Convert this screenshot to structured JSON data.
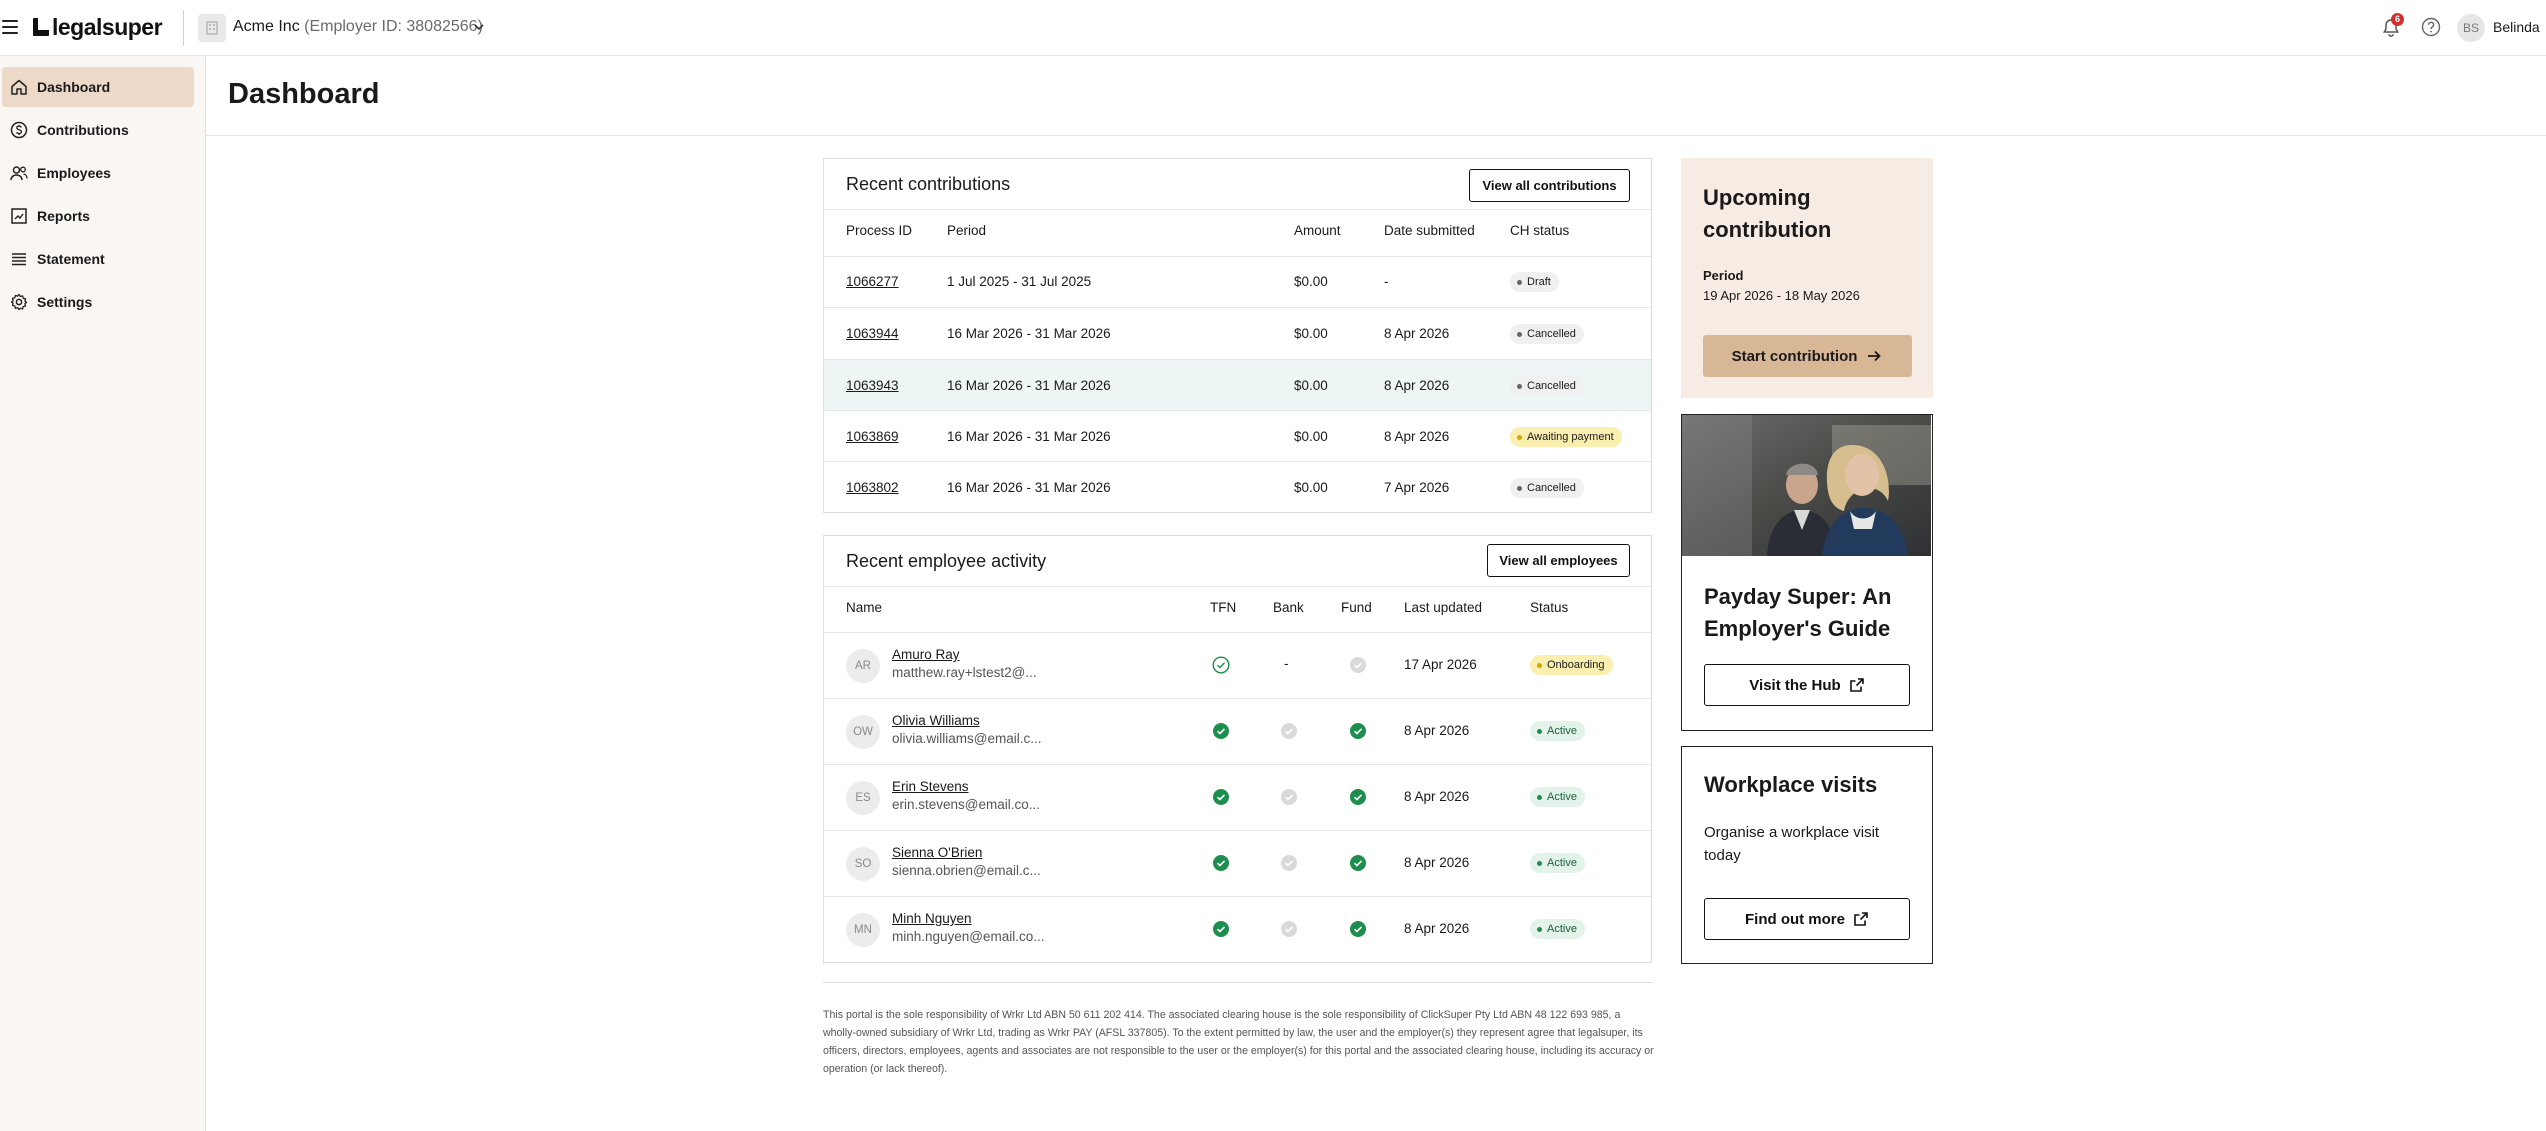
{
  "header": {
    "logo_text": "legalsuper",
    "org_name": "Acme Inc",
    "org_id": "(Employer ID: 38082566)",
    "notification_count": "6",
    "user_initials": "BS",
    "user_name": "Belinda"
  },
  "sidebar": {
    "items": [
      {
        "label": "Dashboard",
        "icon": "home-icon",
        "active": true
      },
      {
        "label": "Contributions",
        "icon": "dollar-circle-icon",
        "active": false
      },
      {
        "label": "Employees",
        "icon": "users-icon",
        "active": false
      },
      {
        "label": "Reports",
        "icon": "chart-icon",
        "active": false
      },
      {
        "label": "Statement",
        "icon": "list-icon",
        "active": false
      },
      {
        "label": "Settings",
        "icon": "gear-icon",
        "active": false
      }
    ]
  },
  "page": {
    "title": "Dashboard"
  },
  "contributions": {
    "title": "Recent contributions",
    "button": "View all contributions",
    "columns": [
      "Process ID",
      "Period",
      "Amount",
      "Date submitted",
      "CH status"
    ],
    "rows": [
      {
        "id": "1066277",
        "period": "1 Jul 2025 - 31 Jul 2025",
        "amount": "$0.00",
        "date": "-",
        "status": "Draft",
        "tone": "gray"
      },
      {
        "id": "1063944",
        "period": "16 Mar 2026 - 31 Mar 2026",
        "amount": "$0.00",
        "date": "8 Apr 2026",
        "status": "Cancelled",
        "tone": "gray"
      },
      {
        "id": "1063943",
        "period": "16 Mar 2026 - 31 Mar 2026",
        "amount": "$0.00",
        "date": "8 Apr 2026",
        "status": "Cancelled",
        "tone": "gray"
      },
      {
        "id": "1063869",
        "period": "16 Mar 2026 - 31 Mar 2026",
        "amount": "$0.00",
        "date": "8 Apr 2026",
        "status": "Awaiting payment",
        "tone": "yellow"
      },
      {
        "id": "1063802",
        "period": "16 Mar 2026 - 31 Mar 2026",
        "amount": "$0.00",
        "date": "7 Apr 2026",
        "status": "Cancelled",
        "tone": "gray"
      }
    ]
  },
  "employees": {
    "title": "Recent employee activity",
    "button": "View all employees",
    "columns": [
      "Name",
      "TFN",
      "Bank",
      "Fund",
      "Last updated",
      "Status"
    ],
    "rows": [
      {
        "initials": "AR",
        "name": "Amuro Ray",
        "email": "matthew.ray+lstest2@...",
        "tfn": "outline-check",
        "bank": "-",
        "fund": "gray-check",
        "updated": "17 Apr 2026",
        "status": "Onboarding",
        "tone": "yellow"
      },
      {
        "initials": "OW",
        "name": "Olivia Williams",
        "email": "olivia.williams@email.c...",
        "tfn": "green-check",
        "bank": "gray-check",
        "fund": "green-check",
        "updated": "8 Apr 2026",
        "status": "Active",
        "tone": "green"
      },
      {
        "initials": "ES",
        "name": "Erin Stevens",
        "email": "erin.stevens@email.co...",
        "tfn": "green-check",
        "bank": "gray-check",
        "fund": "green-check",
        "updated": "8 Apr 2026",
        "status": "Active",
        "tone": "green"
      },
      {
        "initials": "SO",
        "name": "Sienna O'Brien",
        "email": "sienna.obrien@email.c...",
        "tfn": "green-check",
        "bank": "gray-check",
        "fund": "green-check",
        "updated": "8 Apr 2026",
        "status": "Active",
        "tone": "green"
      },
      {
        "initials": "MN",
        "name": "Minh Nguyen",
        "email": "minh.nguyen@email.co...",
        "tfn": "green-check",
        "bank": "gray-check",
        "fund": "green-check",
        "updated": "8 Apr 2026",
        "status": "Active",
        "tone": "green"
      }
    ]
  },
  "upcoming": {
    "title": "Upcoming contribution",
    "period_label": "Period",
    "period": "19 Apr 2026 - 18 May 2026",
    "button": "Start contribution"
  },
  "guide": {
    "title": "Payday Super: An Employer's Guide",
    "button": "Visit the Hub"
  },
  "visits": {
    "title": "Workplace visits",
    "text": "Organise a workplace visit today",
    "button": "Find out more"
  },
  "footer": {
    "text": "This portal is the sole responsibility of Wrkr Ltd ABN 50 611 202 414. The associated clearing house is the sole responsibility of ClickSuper Pty Ltd ABN 48 122 693 985, a wholly-owned subsidiary of Wrkr Ltd, trading as Wrkr PAY (AFSL 337805). To the extent permitted by law, the user and the employer(s) they represent agree that legalsuper, its officers, directors, employees, agents and associates are not responsible to the user or the employer(s) for this portal and the associated clearing house, including its accuracy or operation (or lack thereof)."
  },
  "colors": {
    "sidebar_bg": "#faf6f3",
    "nav_active": "#edd9c7",
    "upcoming_bg": "#f7ece3",
    "primary_button": "#d8b796",
    "success": "#1e8e4e",
    "warning_pill": "#fbefb0",
    "badge": "#d32f2f"
  }
}
